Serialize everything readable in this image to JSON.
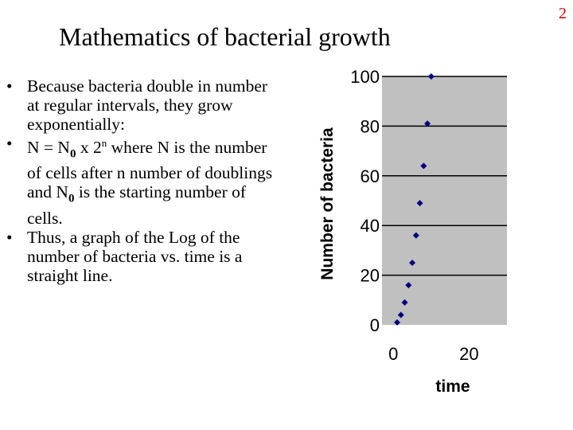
{
  "page_number": "2",
  "title": "Mathematics of bacterial growth",
  "bullets": {
    "b1": "Because bacteria double in number at regular intervals, they grow exponentially:",
    "b2": {
      "p1": "N = N",
      "sub1": "0",
      "p2": " x 2",
      "sup": "n",
      "p3": "  where N is the number of cells after n number of doublings and N",
      "sub2": "0",
      "p4": " is the starting number of cells."
    },
    "b3": "Thus, a graph of the Log of the number of bacteria vs. time is a straight line."
  },
  "colors": {
    "plot_background": "#c0c0c0",
    "gridline": "#000000",
    "marker": "#000080",
    "page_number": "#cc0000"
  },
  "chart_data": {
    "type": "scatter",
    "xlabel": "time",
    "ylabel": "Number of bacteria",
    "xlim": [
      -3,
      30
    ],
    "ylim": [
      0,
      100
    ],
    "x_ticks": [
      "0",
      "20"
    ],
    "y_ticks": [
      "0",
      "20",
      "40",
      "60",
      "80",
      "100"
    ],
    "grid": "horizontal",
    "marker": "diamond",
    "points": [
      {
        "x": 1,
        "y": 1
      },
      {
        "x": 2,
        "y": 4
      },
      {
        "x": 3,
        "y": 9
      },
      {
        "x": 4,
        "y": 16
      },
      {
        "x": 5,
        "y": 25
      },
      {
        "x": 6,
        "y": 36
      },
      {
        "x": 7,
        "y": 49
      },
      {
        "x": 8,
        "y": 64
      },
      {
        "x": 9,
        "y": 81
      },
      {
        "x": 10,
        "y": 100
      }
    ]
  }
}
